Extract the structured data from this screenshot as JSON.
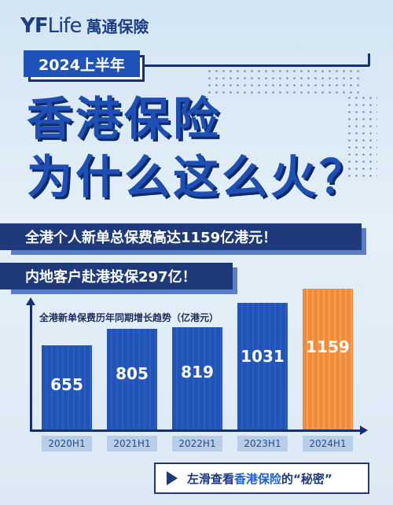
{
  "brand": {
    "latin_yf": "YF",
    "latin_life": "Life",
    "chinese": "萬通保險"
  },
  "year_label": "2024上半年",
  "headline": {
    "line1": "香港保险",
    "line2": "为什么这么火？"
  },
  "stripes": [
    "全港个人新单总保费高达1159亿港元！",
    "内地客户赴港投保297亿！"
  ],
  "chart_data": {
    "type": "bar",
    "title": "全港新单保费历年同期增长趋势（亿港元）",
    "categories": [
      "2020H1",
      "2021H1",
      "2022H1",
      "2023H1",
      "2024H1"
    ],
    "values": [
      655,
      805,
      819,
      1031,
      1159
    ],
    "highlight_index": 4,
    "colors": {
      "default": "#2254b6",
      "highlight": "#f08b3a"
    }
  },
  "cta": {
    "prefix": "左滑查看",
    "highlight": "香港保险",
    "suffix": "的“秘密”"
  }
}
